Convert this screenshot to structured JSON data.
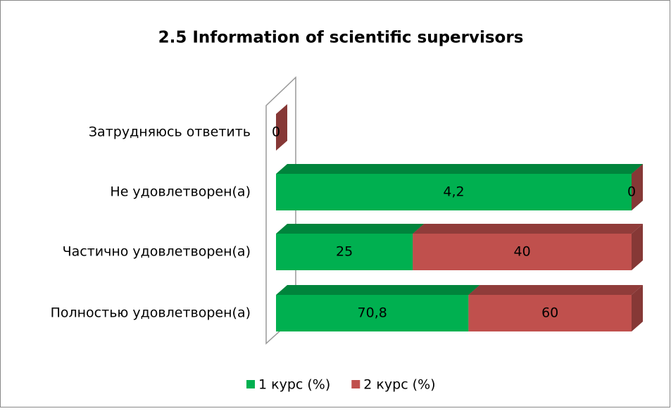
{
  "chart_data": {
    "type": "bar",
    "orientation": "horizontal",
    "stacking": "percent",
    "title": "2.5 Information of scientific supervisors",
    "categories": [
      "Затрудняюсь ответить",
      "Не удовлетворен(а)",
      "Частично удовлетворен(а)",
      "Полностью удовлетворен(а)"
    ],
    "series": [
      {
        "name": "1 курс (%)",
        "color": "#00b050",
        "values": [
          null,
          4.2,
          25,
          70.8
        ],
        "value_labels": [
          null,
          "4,2",
          "25",
          "70,8"
        ]
      },
      {
        "name": "2 курс (%)",
        "color": "#c0504d",
        "values": [
          0,
          0,
          40,
          60
        ]
      }
    ],
    "legend": "bottom"
  }
}
